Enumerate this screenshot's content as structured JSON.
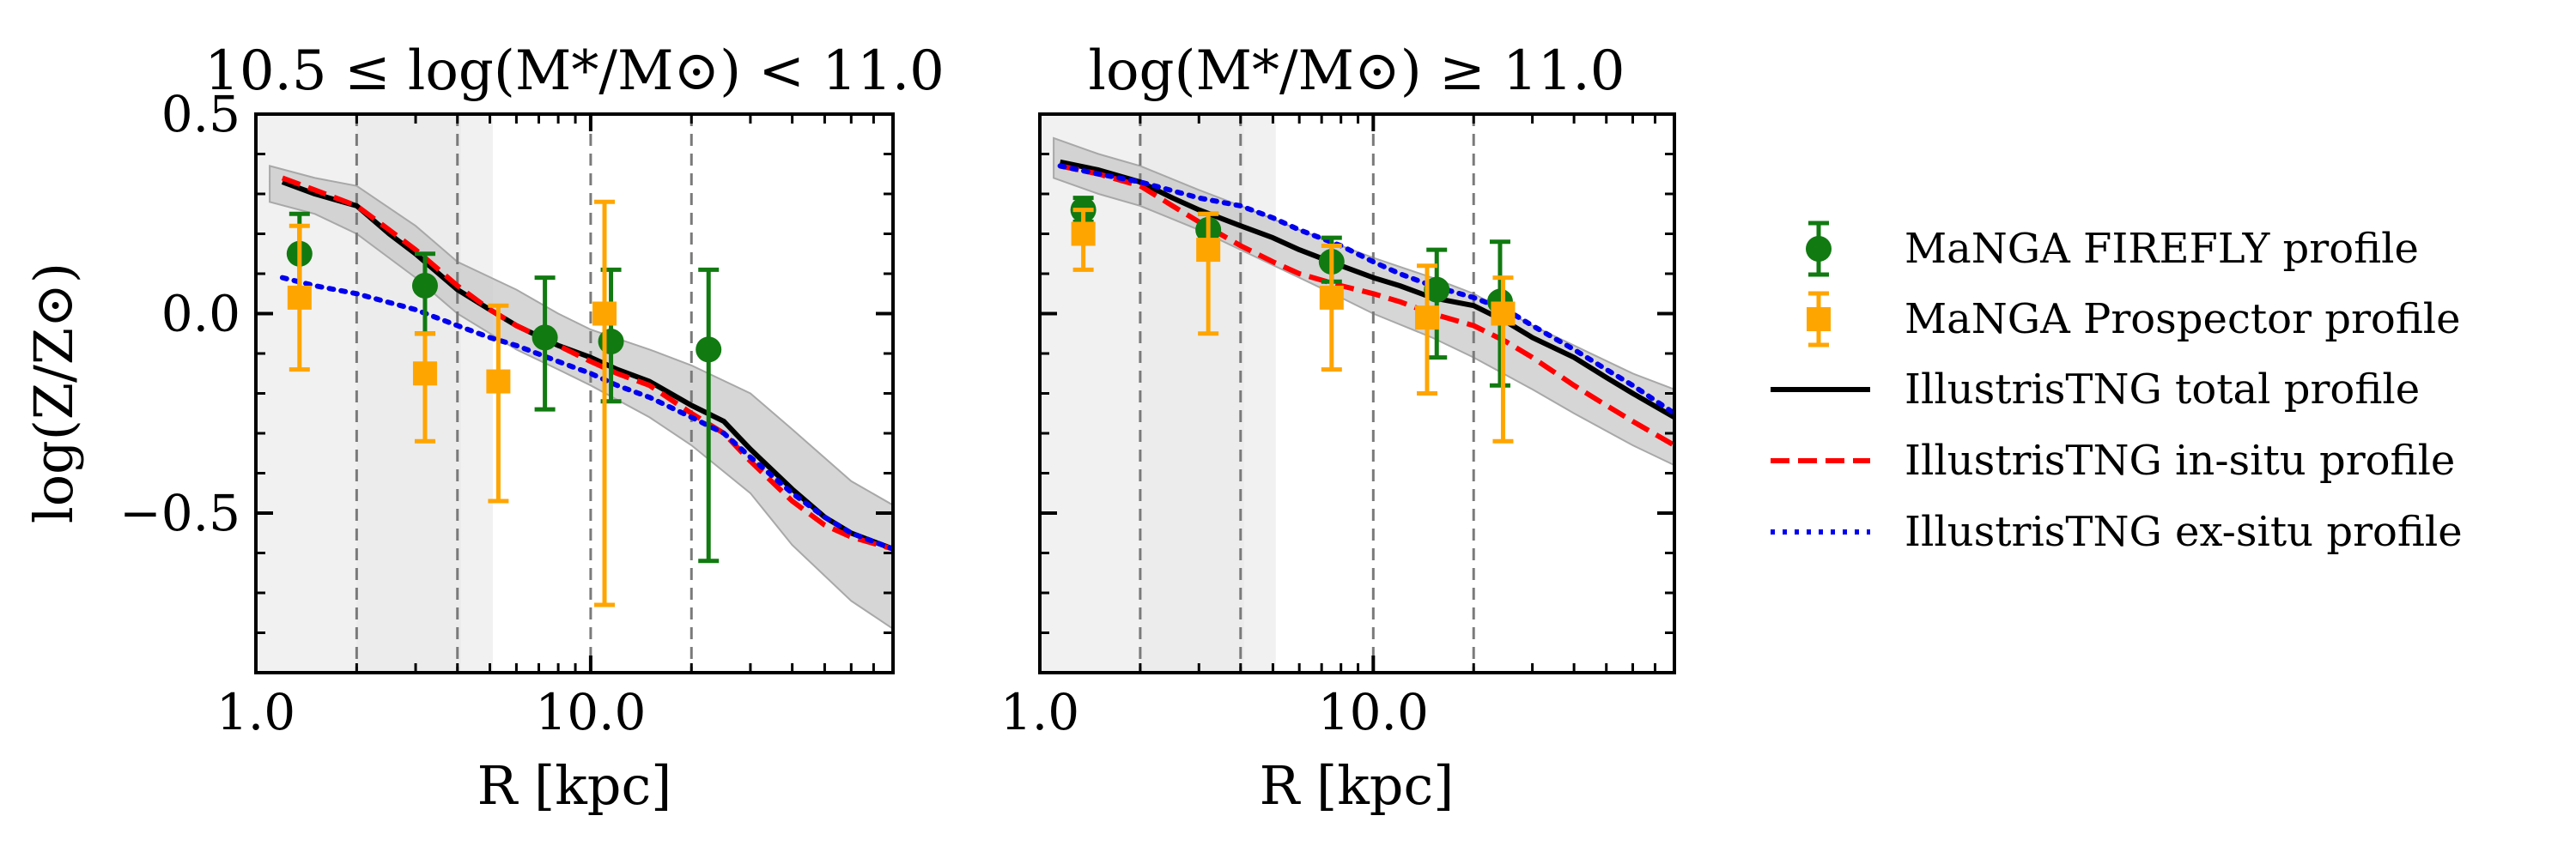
{
  "chart_data": {
    "type": "line",
    "ylabel": "log(Z/Z⊙)",
    "panels": [
      {
        "id": "left",
        "title": "10.5 ≤ log(M*/M⊙) < 11.0",
        "xlabel": "R [kpc]",
        "xscale": "log",
        "xlim": [
          1.0,
          80.0
        ],
        "ylim": [
          -0.9,
          0.5
        ],
        "x_ticks": [
          1.0,
          10.0
        ],
        "x_tick_labels": [
          "1.0",
          "10.0"
        ],
        "y_ticks": [
          -0.5,
          0.0,
          0.5
        ],
        "y_tick_labels": [
          "−0.5",
          "0.0",
          "0.5"
        ],
        "shaded_x_range": [
          1.0,
          5.1
        ],
        "shaded_inner_x_range": [
          2.0,
          4.1
        ],
        "vlines": [
          2.0,
          4.0,
          10.0,
          20.0
        ],
        "total_band": {
          "x": [
            1.1,
            1.5,
            2.0,
            3.0,
            4.0,
            6.0,
            8.0,
            10.0,
            15.0,
            20.0,
            30.0,
            40.0,
            60.0,
            80.0
          ],
          "upper": [
            0.37,
            0.34,
            0.32,
            0.22,
            0.13,
            0.06,
            0.0,
            -0.04,
            -0.09,
            -0.13,
            -0.2,
            -0.29,
            -0.42,
            -0.48
          ],
          "lower": [
            0.28,
            0.25,
            0.2,
            0.09,
            0.0,
            -0.09,
            -0.14,
            -0.18,
            -0.26,
            -0.33,
            -0.45,
            -0.58,
            -0.72,
            -0.79
          ]
        },
        "series": [
          {
            "name": "IllustrisTNG total profile",
            "style": "solid",
            "color": "#000000",
            "x": [
              1.2,
              1.5,
              2.0,
              2.5,
              3.0,
              4.0,
              5.0,
              6.0,
              8.0,
              10.0,
              12.0,
              15.0,
              20.0,
              25.0,
              30.0,
              40.0,
              50.0,
              60.0,
              80.0
            ],
            "y": [
              0.33,
              0.3,
              0.27,
              0.2,
              0.15,
              0.06,
              0.01,
              -0.03,
              -0.08,
              -0.11,
              -0.14,
              -0.17,
              -0.23,
              -0.27,
              -0.34,
              -0.44,
              -0.51,
              -0.55,
              -0.59
            ]
          },
          {
            "name": "IllustrisTNG in-situ profile",
            "style": "dashed",
            "color": "#ff0000",
            "x": [
              1.2,
              1.5,
              2.0,
              2.5,
              3.0,
              4.0,
              5.0,
              6.0,
              8.0,
              10.0,
              12.0,
              15.0,
              20.0,
              25.0,
              30.0,
              40.0,
              50.0,
              60.0,
              80.0
            ],
            "y": [
              0.34,
              0.31,
              0.27,
              0.21,
              0.16,
              0.07,
              0.01,
              -0.03,
              -0.08,
              -0.12,
              -0.15,
              -0.18,
              -0.25,
              -0.3,
              -0.37,
              -0.47,
              -0.53,
              -0.56,
              -0.59
            ]
          },
          {
            "name": "IllustrisTNG ex-situ profile",
            "style": "dotted",
            "color": "#0000ee",
            "x": [
              1.2,
              1.5,
              2.0,
              3.0,
              4.0,
              5.0,
              6.0,
              8.0,
              10.0,
              12.0,
              15.0,
              20.0,
              25.0,
              30.0,
              40.0,
              50.0,
              60.0,
              80.0
            ],
            "y": [
              0.09,
              0.07,
              0.05,
              0.01,
              -0.03,
              -0.06,
              -0.08,
              -0.12,
              -0.15,
              -0.18,
              -0.21,
              -0.26,
              -0.3,
              -0.36,
              -0.45,
              -0.51,
              -0.55,
              -0.59
            ]
          }
        ],
        "points": [
          {
            "name": "MaNGA FIREFLY profile",
            "marker": "circle",
            "color": "#117a11",
            "x": [
              1.35,
              3.2,
              7.3,
              11.5,
              22.5
            ],
            "y": [
              0.15,
              0.07,
              -0.06,
              -0.07,
              -0.09
            ],
            "err_low": [
              0.1,
              0.12,
              0.18,
              0.15,
              0.53
            ],
            "err_high": [
              0.1,
              0.08,
              0.15,
              0.18,
              0.2
            ]
          },
          {
            "name": "MaNGA Prospector profile",
            "marker": "square",
            "color": "#ffa500",
            "x": [
              1.35,
              3.2,
              5.3,
              11.0
            ],
            "y": [
              0.04,
              -0.15,
              -0.17,
              0.0
            ],
            "err_low": [
              0.18,
              0.17,
              0.3,
              0.73
            ],
            "err_high": [
              0.18,
              0.1,
              0.19,
              0.28
            ]
          }
        ]
      },
      {
        "id": "right",
        "title": "log(M*/M⊙) ≥ 11.0",
        "xlabel": "R [kpc]",
        "xscale": "log",
        "xlim": [
          1.0,
          80.0
        ],
        "ylim": [
          -0.9,
          0.5
        ],
        "x_ticks": [
          1.0,
          10.0
        ],
        "x_tick_labels": [
          "1.0",
          "10.0"
        ],
        "y_ticks": [
          -0.5,
          0.0,
          0.5
        ],
        "y_tick_labels": [
          "",
          "",
          ""
        ],
        "shaded_x_range": [
          1.0,
          5.1
        ],
        "shaded_inner_x_range": [
          2.0,
          4.1
        ],
        "vlines": [
          2.0,
          4.0,
          10.0,
          20.0
        ],
        "total_band": {
          "x": [
            1.1,
            1.5,
            2.0,
            3.0,
            4.0,
            6.0,
            8.0,
            10.0,
            15.0,
            20.0,
            30.0,
            40.0,
            60.0,
            80.0
          ],
          "upper": [
            0.44,
            0.4,
            0.37,
            0.31,
            0.27,
            0.21,
            0.17,
            0.14,
            0.09,
            0.05,
            -0.03,
            -0.08,
            -0.15,
            -0.19
          ],
          "lower": [
            0.34,
            0.3,
            0.27,
            0.21,
            0.16,
            0.09,
            0.04,
            0.0,
            -0.06,
            -0.11,
            -0.19,
            -0.25,
            -0.33,
            -0.38
          ]
        },
        "series": [
          {
            "name": "IllustrisTNG total profile",
            "style": "solid",
            "color": "#000000",
            "x": [
              1.15,
              1.5,
              2.0,
              2.5,
              3.0,
              4.0,
              5.0,
              6.0,
              8.0,
              10.0,
              12.0,
              15.0,
              20.0,
              25.0,
              30.0,
              40.0,
              50.0,
              60.0,
              80.0
            ],
            "y": [
              0.38,
              0.36,
              0.33,
              0.29,
              0.26,
              0.22,
              0.19,
              0.16,
              0.12,
              0.09,
              0.07,
              0.04,
              0.02,
              -0.02,
              -0.06,
              -0.11,
              -0.16,
              -0.2,
              -0.26
            ]
          },
          {
            "name": "IllustrisTNG in-situ profile",
            "style": "dashed",
            "color": "#ff0000",
            "x": [
              1.15,
              1.5,
              2.0,
              2.5,
              3.0,
              4.0,
              5.0,
              6.0,
              8.0,
              10.0,
              12.0,
              15.0,
              20.0,
              25.0,
              30.0,
              40.0,
              50.0,
              60.0,
              80.0
            ],
            "y": [
              0.37,
              0.35,
              0.32,
              0.27,
              0.23,
              0.17,
              0.13,
              0.1,
              0.07,
              0.05,
              0.03,
              0.0,
              -0.03,
              -0.07,
              -0.11,
              -0.18,
              -0.23,
              -0.27,
              -0.33
            ]
          },
          {
            "name": "IllustrisTNG ex-situ profile",
            "style": "dotted",
            "color": "#0000ee",
            "x": [
              1.15,
              1.5,
              2.0,
              3.0,
              4.0,
              5.0,
              6.0,
              8.0,
              10.0,
              12.0,
              15.0,
              20.0,
              25.0,
              30.0,
              40.0,
              50.0,
              60.0,
              80.0
            ],
            "y": [
              0.37,
              0.35,
              0.33,
              0.29,
              0.27,
              0.24,
              0.21,
              0.17,
              0.13,
              0.1,
              0.07,
              0.04,
              0.01,
              -0.03,
              -0.09,
              -0.14,
              -0.18,
              -0.25
            ]
          }
        ],
        "points": [
          {
            "name": "MaNGA FIREFLY profile",
            "marker": "circle",
            "color": "#117a11",
            "x": [
              1.35,
              3.2,
              7.5,
              15.5,
              24.0
            ],
            "y": [
              0.26,
              0.21,
              0.13,
              0.06,
              0.03
            ],
            "err_low": [
              0.03,
              0.04,
              0.05,
              0.17,
              0.21
            ],
            "err_high": [
              0.03,
              0.04,
              0.06,
              0.1,
              0.15
            ]
          },
          {
            "name": "MaNGA Prospector profile",
            "marker": "square",
            "color": "#ffa500",
            "x": [
              1.35,
              3.2,
              7.5,
              14.5,
              24.5
            ],
            "y": [
              0.2,
              0.16,
              0.04,
              -0.01,
              0.0
            ],
            "err_low": [
              0.09,
              0.21,
              0.18,
              0.19,
              0.32
            ],
            "err_high": [
              0.06,
              0.09,
              0.13,
              0.13,
              0.09
            ]
          }
        ]
      }
    ],
    "legend": [
      {
        "label": "MaNGA FIREFLY profile",
        "kind": "circle-errorbar",
        "color": "#117a11"
      },
      {
        "label": "MaNGA Prospector profile",
        "kind": "square-errorbar",
        "color": "#ffa500"
      },
      {
        "label": "IllustrisTNG total profile",
        "kind": "solid",
        "color": "#000000"
      },
      {
        "label": "IllustrisTNG in-situ profile",
        "kind": "dashed",
        "color": "#ff0000"
      },
      {
        "label": "IllustrisTNG ex-situ profile",
        "kind": "dotted",
        "color": "#0000ee"
      }
    ]
  }
}
